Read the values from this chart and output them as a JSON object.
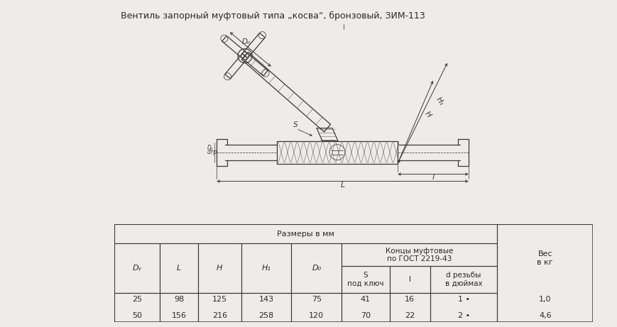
{
  "title": "Вентиль запорный муфтовый типа „косва“, бронзовый, ЗИМ-113",
  "bg_color": "#eeece8",
  "table_header_row1": "Размеры в мм",
  "col_headers_left": [
    "Dᵧ",
    "L",
    "H",
    "H₁",
    "D₀"
  ],
  "koncy_header": "Концы муфтовые\nпо ГОСТ 2219-43",
  "sub_headers": [
    "S\nпод ключ",
    "l",
    "d резьбы\nв дюймах"
  ],
  "ves_header": "Вес\nв кг",
  "data_row1": [
    "25",
    "98",
    "125",
    "143",
    "75",
    "41",
    "16",
    "1 •",
    "1,0"
  ],
  "data_row2": [
    "50",
    "156",
    "216",
    "258",
    "120",
    "70",
    "22",
    "2 •",
    "4,6"
  ],
  "lc": "#3a3a3a",
  "tc": "#2a2a2a",
  "fs_title": 9.0,
  "fs_table": 8.0,
  "fs_dim": 7.5
}
